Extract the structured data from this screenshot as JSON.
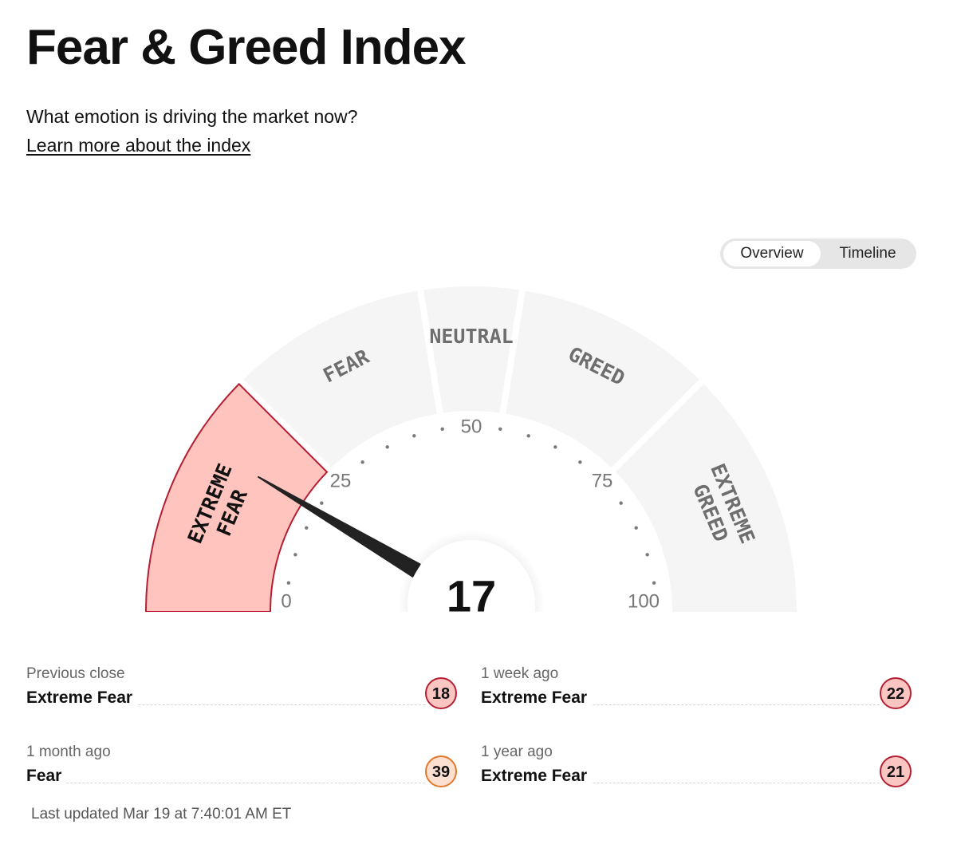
{
  "header": {
    "title": "Fear & Greed Index",
    "subtitle": "What emotion is driving the market now?",
    "learn_more": "Learn more about the index"
  },
  "view_toggle": {
    "options": [
      "Overview",
      "Timeline"
    ],
    "active": "Overview"
  },
  "gauge": {
    "value": 17,
    "min": 0,
    "max": 100,
    "segments": [
      {
        "lines": [
          "EXTREME",
          "FEAR"
        ],
        "range": [
          0,
          25
        ]
      },
      {
        "lines": [
          "FEAR"
        ],
        "range": [
          25,
          45
        ]
      },
      {
        "lines": [
          "NEUTRAL"
        ],
        "range": [
          45,
          55
        ]
      },
      {
        "lines": [
          "GREED"
        ],
        "range": [
          55,
          75
        ]
      },
      {
        "lines": [
          "EXTREME",
          "GREED"
        ],
        "range": [
          75,
          100
        ]
      }
    ],
    "tick_labels": [
      "0",
      "25",
      "50",
      "75",
      "100"
    ],
    "colors": {
      "active_fill": "#fec4bd",
      "active_stroke": "#b51f33",
      "inactive_fill": "#f5f5f5",
      "needle": "#222222"
    }
  },
  "stats": [
    {
      "label": "Previous close",
      "rating": "Extreme Fear",
      "value": "18",
      "level": "xfear"
    },
    {
      "label": "1 week ago",
      "rating": "Extreme Fear",
      "value": "22",
      "level": "xfear"
    },
    {
      "label": "1 month ago",
      "rating": "Fear",
      "value": "39",
      "level": "fear"
    },
    {
      "label": "1 year ago",
      "rating": "Extreme Fear",
      "value": "21",
      "level": "xfear"
    }
  ],
  "last_updated": "Last updated Mar 19 at 7:40:01 AM ET"
}
